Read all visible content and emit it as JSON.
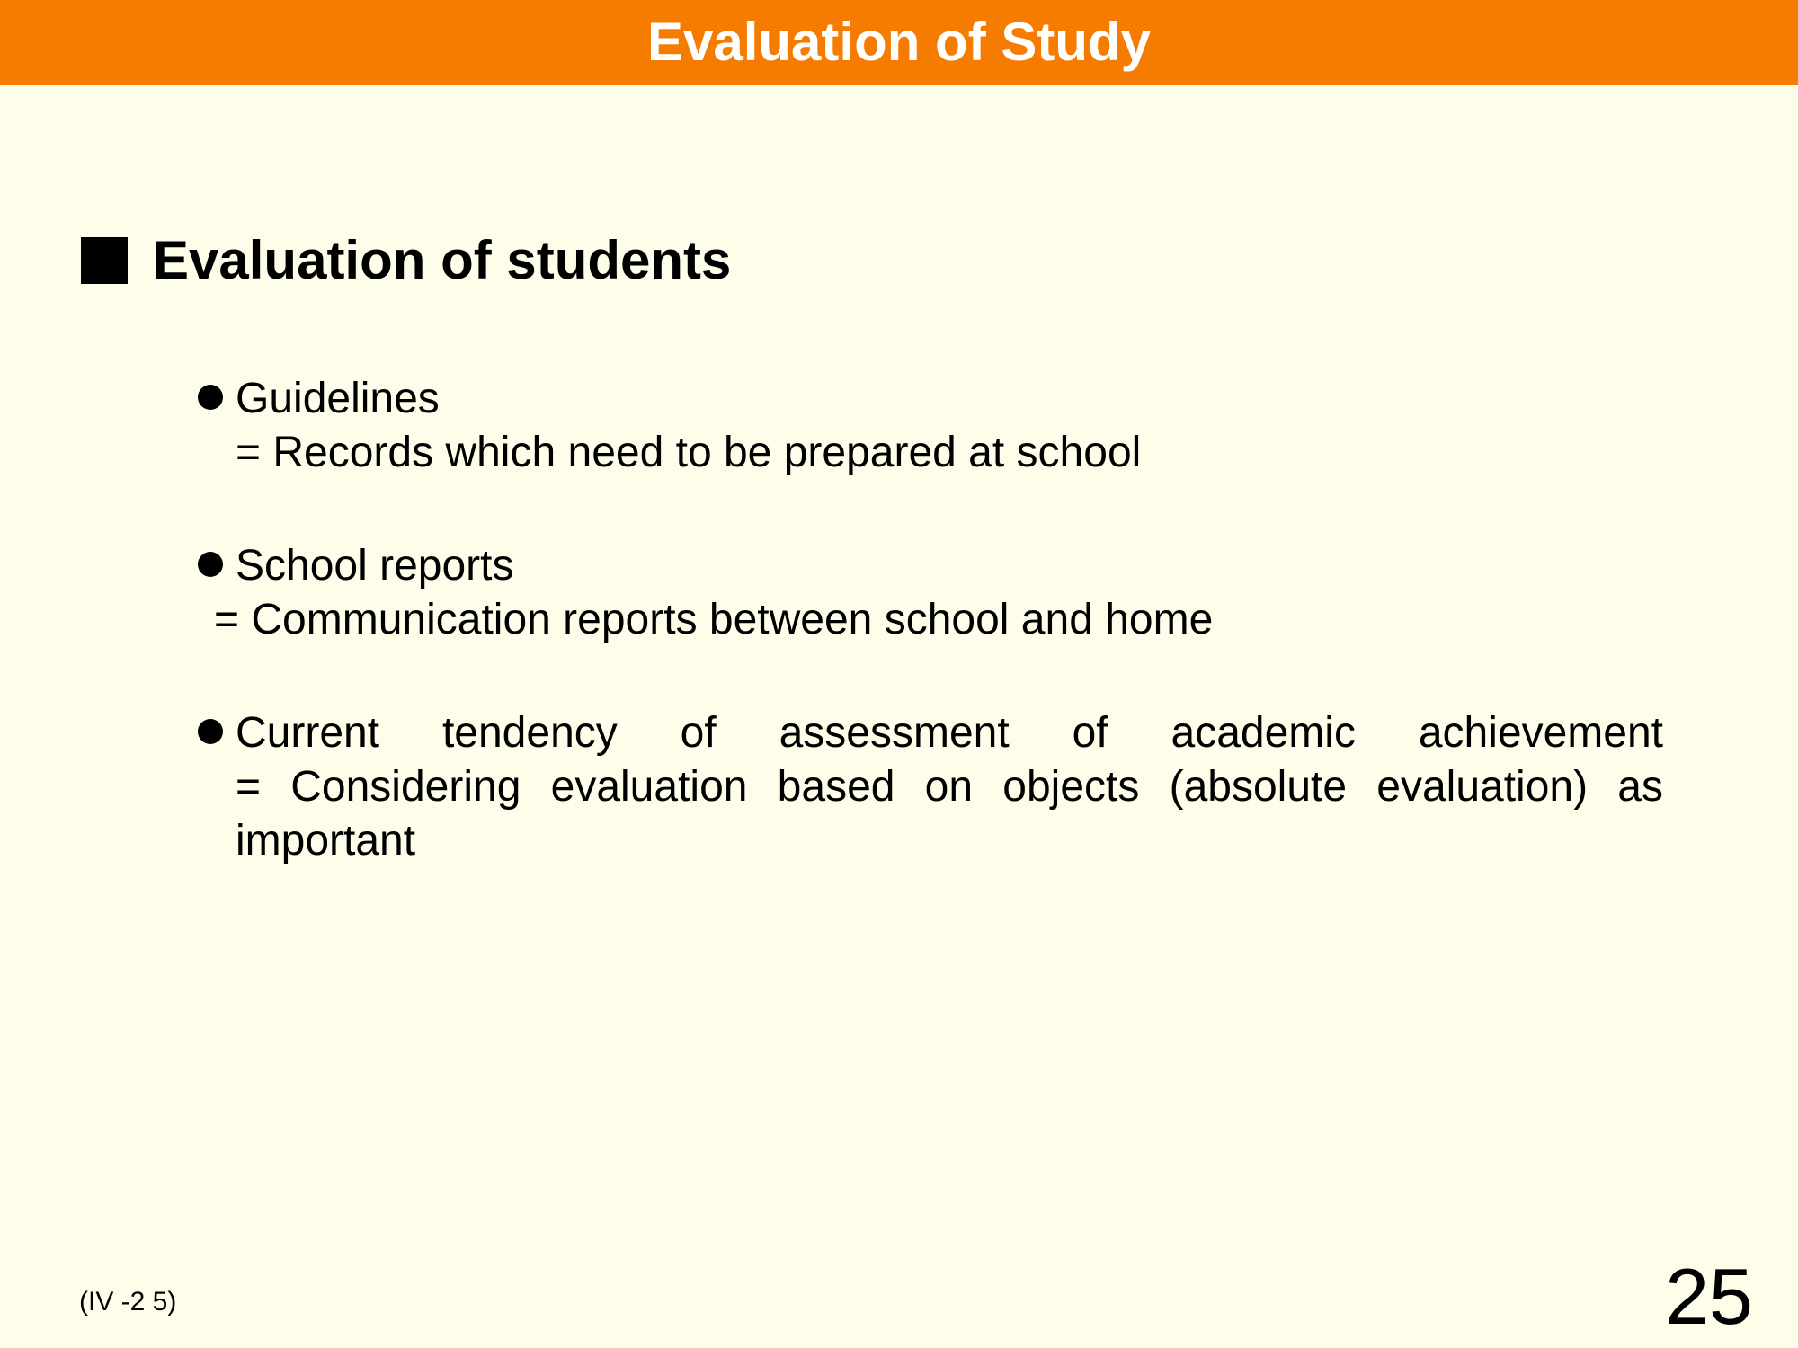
{
  "colors": {
    "header_bg": "#f57c00",
    "header_text": "#ffffff",
    "body_bg": "#fdfdea",
    "text": "#000000",
    "bullet": "#000000"
  },
  "title": "Evaluation of Study",
  "section": {
    "heading": "Evaluation of students",
    "items": [
      {
        "title": "Guidelines",
        "desc": "= Records which need to be prepared at school"
      },
      {
        "title": "School reports",
        "desc": "= Communication reports between school and home"
      },
      {
        "title": "Current tendency of assessment of academic achievement",
        "desc": "= Considering evaluation based on objects (absolute evaluation) as important"
      }
    ]
  },
  "footer_ref": "(IV -2 5)",
  "page_number": "25"
}
